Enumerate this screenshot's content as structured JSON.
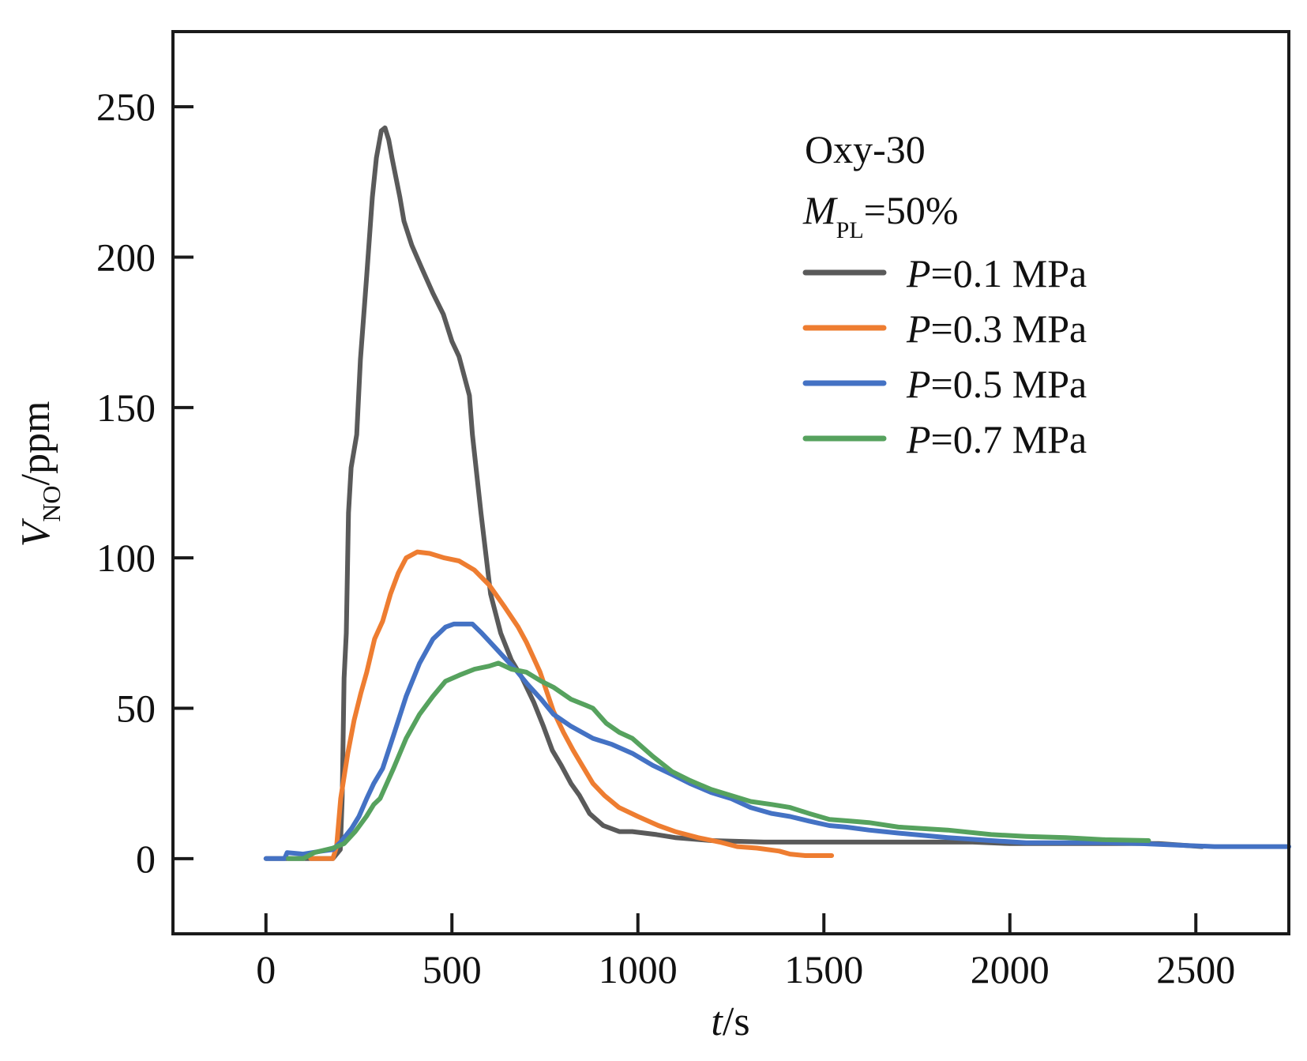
{
  "chart_data": {
    "type": "line",
    "title": "",
    "xlabel": "t/s",
    "xlabel_parts": {
      "italic": "t",
      "rest": "/s"
    },
    "ylabel": "V_NO/ppm",
    "ylabel_parts": {
      "main": "V",
      "sub": "NO",
      "rest": "/ppm"
    },
    "xlim": [
      -250,
      2750
    ],
    "ylim": [
      -25,
      275
    ],
    "xticks": [
      0,
      500,
      1000,
      1500,
      2000,
      2500
    ],
    "xtick_labels": [
      "0",
      "500",
      "1000",
      "1500",
      "2000",
      "2500"
    ],
    "yticks": [
      0,
      50,
      100,
      150,
      200,
      250
    ],
    "ytick_labels": [
      "0",
      "50",
      "100",
      "150",
      "200",
      "250"
    ],
    "grid": false,
    "legend_position": "top-right",
    "annotations": [
      {
        "text": "Oxy-30"
      },
      {
        "text": "M_PL=50%",
        "main": "M",
        "sub": "PL",
        "rest": "=50%"
      }
    ],
    "series": [
      {
        "name": "P=0.1 MPa",
        "label_italic": "P",
        "label_rest": "=0.1 MPa",
        "color": "#5a5a5a",
        "points": [
          [
            0,
            0
          ],
          [
            60,
            0
          ],
          [
            120,
            0
          ],
          [
            180,
            0
          ],
          [
            200,
            3
          ],
          [
            205,
            20
          ],
          [
            210,
            60
          ],
          [
            216,
            75
          ],
          [
            222,
            115
          ],
          [
            229,
            130
          ],
          [
            244,
            141
          ],
          [
            254,
            166
          ],
          [
            271,
            194
          ],
          [
            286,
            220
          ],
          [
            297,
            233
          ],
          [
            310,
            242
          ],
          [
            320,
            243
          ],
          [
            330,
            239
          ],
          [
            339,
            233
          ],
          [
            360,
            220
          ],
          [
            371,
            212
          ],
          [
            392,
            204
          ],
          [
            420,
            196
          ],
          [
            449,
            188
          ],
          [
            477,
            181
          ],
          [
            500,
            172
          ],
          [
            519,
            167
          ],
          [
            547,
            154
          ],
          [
            555,
            141
          ],
          [
            578,
            115
          ],
          [
            604,
            88
          ],
          [
            631,
            75
          ],
          [
            660,
            66
          ],
          [
            689,
            60
          ],
          [
            720,
            52
          ],
          [
            746,
            44
          ],
          [
            770,
            36
          ],
          [
            794,
            31
          ],
          [
            820,
            25
          ],
          [
            843,
            21
          ],
          [
            870,
            15
          ],
          [
            907,
            11
          ],
          [
            950,
            9
          ],
          [
            985,
            9
          ],
          [
            1050,
            8
          ],
          [
            1100,
            7
          ],
          [
            1197,
            6
          ],
          [
            1339,
            5.5
          ],
          [
            1515,
            5.5
          ],
          [
            1700,
            5.5
          ],
          [
            1900,
            5.5
          ],
          [
            2000,
            5
          ],
          [
            2200,
            5
          ],
          [
            2400,
            5
          ],
          [
            2517,
            4
          ]
        ]
      },
      {
        "name": "P=0.3 MPa",
        "label_italic": "P",
        "label_rest": "=0.3 MPa",
        "color": "#ee7d31",
        "points": [
          [
            120,
            0
          ],
          [
            150,
            0
          ],
          [
            180,
            0
          ],
          [
            190,
            4
          ],
          [
            201,
            20
          ],
          [
            220,
            35
          ],
          [
            237,
            46
          ],
          [
            255,
            55
          ],
          [
            271,
            62
          ],
          [
            292,
            73
          ],
          [
            314,
            79
          ],
          [
            335,
            88
          ],
          [
            356,
            95
          ],
          [
            377,
            100
          ],
          [
            407,
            102
          ],
          [
            440,
            101.5
          ],
          [
            480,
            100
          ],
          [
            519,
            99
          ],
          [
            560,
            96
          ],
          [
            600,
            91
          ],
          [
            640,
            84
          ],
          [
            678,
            77
          ],
          [
            700,
            72
          ],
          [
            737,
            62
          ],
          [
            773,
            49
          ],
          [
            800,
            42
          ],
          [
            826,
            36
          ],
          [
            850,
            31
          ],
          [
            879,
            25
          ],
          [
            910,
            21
          ],
          [
            949,
            17
          ],
          [
            1000,
            14
          ],
          [
            1055,
            11
          ],
          [
            1100,
            9
          ],
          [
            1161,
            7
          ],
          [
            1220,
            5.5
          ],
          [
            1267,
            4
          ],
          [
            1320,
            3.5
          ],
          [
            1380,
            2.5
          ],
          [
            1409,
            1.5
          ],
          [
            1450,
            1
          ],
          [
            1521,
            1
          ]
        ]
      },
      {
        "name": "P=0.5 MPa",
        "label_italic": "P",
        "label_rest": "=0.5 MPa",
        "color": "#4472c4",
        "points": [
          [
            0,
            0
          ],
          [
            50,
            0
          ],
          [
            57,
            2
          ],
          [
            100,
            1.5
          ],
          [
            150,
            2.5
          ],
          [
            180,
            3
          ],
          [
            201,
            5.5
          ],
          [
            230,
            10
          ],
          [
            250,
            14
          ],
          [
            271,
            20
          ],
          [
            290,
            25
          ],
          [
            314,
            30
          ],
          [
            343,
            41
          ],
          [
            377,
            54
          ],
          [
            413,
            65
          ],
          [
            449,
            73
          ],
          [
            483,
            77
          ],
          [
            505,
            78
          ],
          [
            530,
            78
          ],
          [
            555,
            78
          ],
          [
            580,
            75
          ],
          [
            610,
            71
          ],
          [
            640,
            67
          ],
          [
            670,
            63
          ],
          [
            703,
            58
          ],
          [
            740,
            53
          ],
          [
            773,
            48
          ],
          [
            820,
            44
          ],
          [
            879,
            40
          ],
          [
            930,
            38
          ],
          [
            985,
            35
          ],
          [
            1040,
            31
          ],
          [
            1091,
            28
          ],
          [
            1140,
            25
          ],
          [
            1197,
            22
          ],
          [
            1250,
            20
          ],
          [
            1303,
            17
          ],
          [
            1360,
            15
          ],
          [
            1409,
            14
          ],
          [
            1460,
            12.5
          ],
          [
            1515,
            11
          ],
          [
            1560,
            10.5
          ],
          [
            1621,
            9.5
          ],
          [
            1700,
            8.5
          ],
          [
            1833,
            7
          ],
          [
            1950,
            6
          ],
          [
            2044,
            5.3
          ],
          [
            2150,
            5.3
          ],
          [
            2256,
            5.3
          ],
          [
            2350,
            5
          ],
          [
            2450,
            4.5
          ],
          [
            2550,
            4
          ],
          [
            2650,
            4
          ],
          [
            2750,
            4
          ]
        ]
      },
      {
        "name": "P=0.7 MPa",
        "label_italic": "P",
        "label_rest": "=0.7 MPa",
        "color": "#56a25e",
        "points": [
          [
            60,
            0
          ],
          [
            100,
            0
          ],
          [
            130,
            2
          ],
          [
            180,
            3.5
          ],
          [
            210,
            5
          ],
          [
            240,
            9
          ],
          [
            270,
            14
          ],
          [
            290,
            18
          ],
          [
            307,
            20
          ],
          [
            325,
            25
          ],
          [
            343,
            30
          ],
          [
            377,
            40
          ],
          [
            413,
            48
          ],
          [
            449,
            54
          ],
          [
            483,
            59
          ],
          [
            520,
            61
          ],
          [
            561,
            63
          ],
          [
            600,
            64
          ],
          [
            625,
            65
          ],
          [
            660,
            63
          ],
          [
            700,
            62
          ],
          [
            740,
            59
          ],
          [
            773,
            57
          ],
          [
            820,
            53
          ],
          [
            860,
            51
          ],
          [
            879,
            50
          ],
          [
            915,
            45
          ],
          [
            950,
            42
          ],
          [
            985,
            40
          ],
          [
            1040,
            34
          ],
          [
            1091,
            29
          ],
          [
            1140,
            26
          ],
          [
            1197,
            23
          ],
          [
            1250,
            21
          ],
          [
            1303,
            19
          ],
          [
            1360,
            18
          ],
          [
            1409,
            17
          ],
          [
            1460,
            15
          ],
          [
            1515,
            13
          ],
          [
            1570,
            12.5
          ],
          [
            1621,
            12
          ],
          [
            1700,
            10.5
          ],
          [
            1833,
            9.5
          ],
          [
            1950,
            8
          ],
          [
            2044,
            7.4
          ],
          [
            2150,
            7
          ],
          [
            2256,
            6.3
          ],
          [
            2373,
            6
          ]
        ]
      }
    ]
  }
}
